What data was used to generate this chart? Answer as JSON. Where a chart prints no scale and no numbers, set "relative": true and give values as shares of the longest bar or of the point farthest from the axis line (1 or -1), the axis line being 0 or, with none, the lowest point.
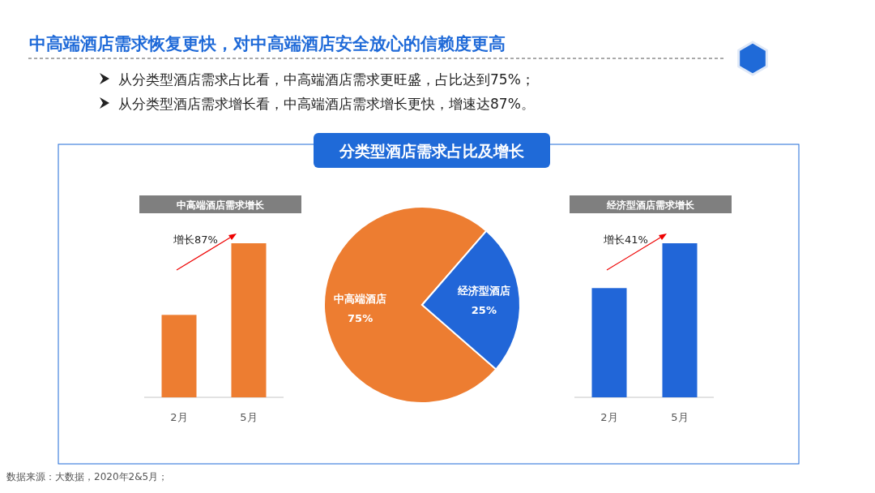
{
  "chart_data": [
    {
      "type": "other",
      "title": "中高端酒店需求恢复更快，对中高端酒店安全放心的信赖度更高",
      "annotations": [
        "从分类型酒店需求占比看，中高端酒店需求更旺盛，占比达到75%；",
        "从分类型酒店需求增长看，中高端酒店需求增长更快，增速达87%。",
        "数据来源：大数据，2020年2&5月；"
      ]
    },
    {
      "type": "bar",
      "title": "中高端酒店需求增长",
      "categories": [
        "2月",
        "5月"
      ],
      "values": [
        0.535,
        1
      ],
      "color": "#ed7d31",
      "relative": true,
      "annotations": [
        "增长87%"
      ]
    },
    {
      "type": "pie",
      "title": "分类型酒店需求占比及增长",
      "categories": [
        "中高端酒店",
        "经济型酒店"
      ],
      "values": [
        75,
        25
      ],
      "colors": [
        "#ed7d31",
        "#2166d8"
      ],
      "value_labels": [
        "75%",
        "25%"
      ]
    },
    {
      "type": "bar",
      "title": "经济型酒店需求增长",
      "categories": [
        "2月",
        "5月"
      ],
      "values": [
        0.709,
        1
      ],
      "color": "#2166d8",
      "relative": true,
      "annotations": [
        "增长41%"
      ]
    }
  ]
}
